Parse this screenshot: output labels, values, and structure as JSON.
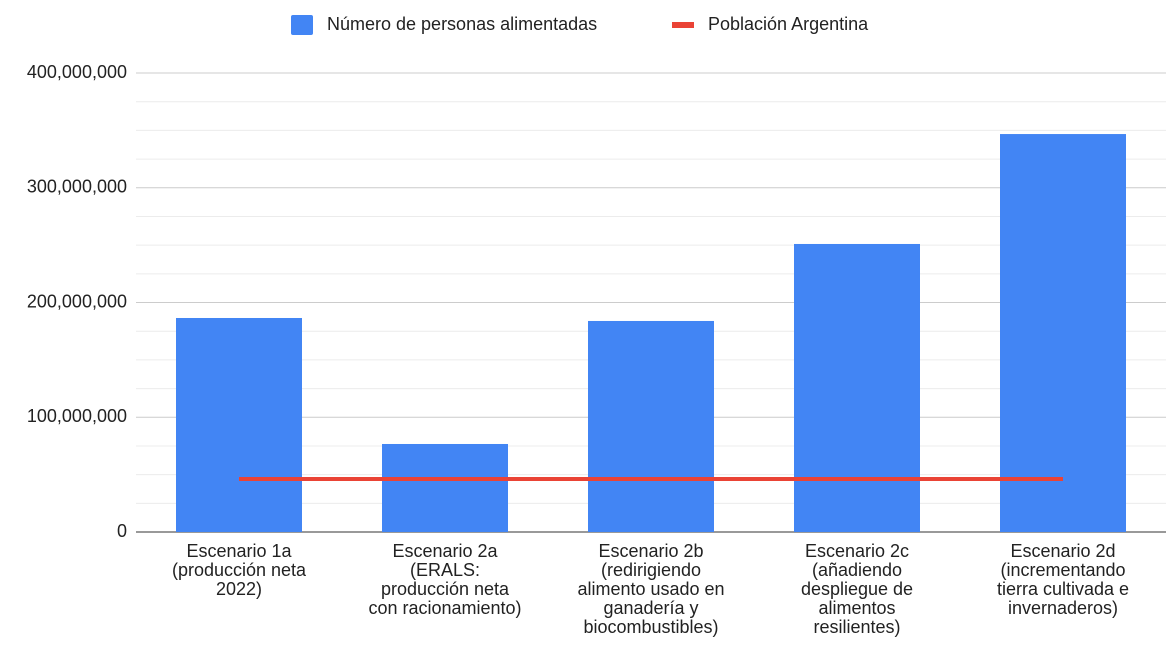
{
  "chart_data": {
    "type": "bar",
    "categories": [
      [
        "Escenario 1a",
        "(producción neta",
        "2022)"
      ],
      [
        "Escenario 2a",
        "(ERALS:",
        "producción neta",
        "con racionamiento)"
      ],
      [
        "Escenario 2b",
        "(redirigiendo",
        "alimento usado en",
        "ganadería y",
        "biocombustibles)"
      ],
      [
        "Escenario 2c",
        "(añadiendo",
        "despliegue de",
        "alimentos",
        "resilientes)"
      ],
      [
        "Escenario 2d",
        "(incrementando",
        "tierra cultivada e",
        "invernaderos)"
      ]
    ],
    "series": [
      {
        "name": "Número de personas alimentadas",
        "type": "bar",
        "color": "#4285f4",
        "values": [
          186500000,
          76700000,
          183900000,
          251000000,
          346800000
        ]
      },
      {
        "name": "Población Argentina",
        "type": "line",
        "color": "#ea4335",
        "values": [
          46200000,
          46200000,
          46200000,
          46200000,
          46200000
        ]
      }
    ],
    "ylim": [
      0,
      400000000
    ],
    "yticks": [
      {
        "value": 0,
        "label": "0"
      },
      {
        "value": 100000000,
        "label": "100,000,000"
      },
      {
        "value": 200000000,
        "label": "200,000,000"
      },
      {
        "value": 300000000,
        "label": "300,000,000"
      },
      {
        "value": 400000000,
        "label": "400,000,000"
      }
    ],
    "minor_yticks": [
      25000000,
      50000000,
      75000000,
      125000000,
      150000000,
      175000000,
      225000000,
      250000000,
      275000000,
      325000000,
      350000000,
      375000000
    ],
    "grid": true,
    "legend": "top"
  }
}
